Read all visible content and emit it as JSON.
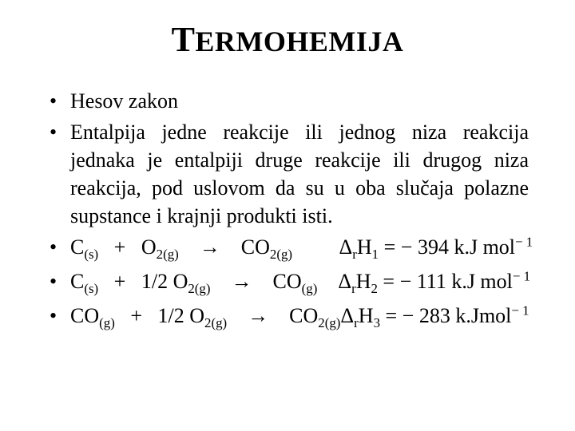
{
  "title_parts": {
    "first": "T",
    "rest": "ERMOHEMIJA"
  },
  "bullets": [
    {
      "type": "text",
      "text": "Hesov zakon"
    },
    {
      "type": "text",
      "text": "Entalpija jedne reakcije ili jednog niza reakcija jednaka je entalpiji druge reakcije ili drugog niza reakcija, pod uslovom da su u oba slučaja polazne supstance i krajnji produkti isti."
    },
    {
      "type": "equation",
      "lhs": [
        {
          "base": "C",
          "sub": "(s)"
        },
        {
          "op": "+"
        },
        {
          "base": "O",
          "sub": "2(g)"
        }
      ],
      "arrow": "→",
      "rhs": [
        {
          "base": "CO",
          "sub": "2(g)"
        }
      ],
      "dh_label": {
        "delta": "Δ",
        "sub": "r",
        "H": "H",
        "idx": "1"
      },
      "eq_value": "= − 394 k.J mol",
      "eq_sup": "− 1"
    },
    {
      "type": "equation",
      "lhs": [
        {
          "base": "C",
          "sub": "(s)"
        },
        {
          "op": "+"
        },
        {
          "coef": "1/2 ",
          "base": "O",
          "sub": "2(g)"
        }
      ],
      "arrow": "→",
      "rhs": [
        {
          "base": "CO",
          "sub": "(g)"
        }
      ],
      "dh_label": {
        "delta": "Δ",
        "sub": "r",
        "H": "H",
        "idx": "2"
      },
      "eq_value": "= − 111 k.J mol",
      "eq_sup": "− 1"
    },
    {
      "type": "equation",
      "lhs": [
        {
          "base": "CO",
          "sub": "(g)"
        },
        {
          "op": "+"
        },
        {
          "coef": "1/2 ",
          "base": "O",
          "sub": "2(g)"
        }
      ],
      "arrow": "→",
      "rhs": [
        {
          "base": "CO",
          "sub": "2(g)"
        }
      ],
      "dh_label": {
        "delta": "Δ",
        "sub": "r",
        "H": "H",
        "idx": "3"
      },
      "eq_value": "= − 283 k.Jmol",
      "eq_sup": "− 1"
    }
  ],
  "colors": {
    "text": "#000000",
    "background": "#ffffff"
  },
  "typography": {
    "title_fontsize": 36,
    "title_big_fontsize": 44,
    "body_fontsize": 26,
    "font_family": "Times New Roman"
  }
}
